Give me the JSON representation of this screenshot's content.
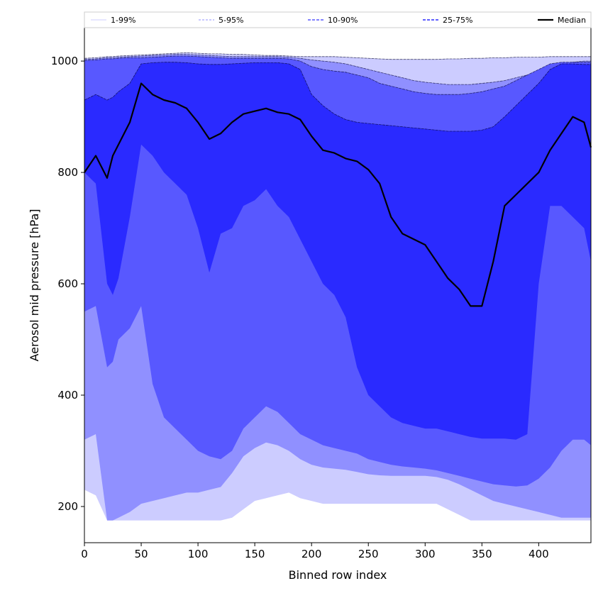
{
  "chart_data": {
    "type": "area",
    "title": "",
    "xlabel": "Binned row index",
    "ylabel": "Aerosol mid pressure [hPa]",
    "xlim": [
      0,
      446
    ],
    "ylim": [
      135,
      1060
    ],
    "xticks": [
      0,
      50,
      100,
      150,
      200,
      250,
      300,
      350,
      400
    ],
    "yticks": [
      200,
      400,
      600,
      800,
      1000
    ],
    "grid": false,
    "legend_position": "top (single row across plot width)",
    "colors": {
      "band_1_99": "#ccccff",
      "band_5_95": "#9090ff",
      "band_10_90": "#5858ff",
      "band_25_75": "#2a2aff",
      "median": "#000000"
    },
    "legend": [
      {
        "label": "1-99%",
        "style": "solid-thin",
        "color": "#ccccff"
      },
      {
        "label": "5-95%",
        "style": "dashed-thin",
        "color": "#9090ff"
      },
      {
        "label": "10-90%",
        "style": "dashed",
        "color": "#5858ff"
      },
      {
        "label": "25-75%",
        "style": "dashed",
        "color": "#2a2aff"
      },
      {
        "label": "Median",
        "style": "solid-thick",
        "color": "#000000"
      }
    ],
    "x": [
      0,
      10,
      20,
      25,
      30,
      40,
      50,
      60,
      70,
      80,
      90,
      100,
      110,
      120,
      130,
      140,
      150,
      160,
      170,
      180,
      190,
      200,
      210,
      220,
      230,
      240,
      250,
      260,
      270,
      280,
      290,
      300,
      310,
      320,
      330,
      340,
      350,
      360,
      370,
      380,
      390,
      400,
      410,
      420,
      430,
      440,
      446
    ],
    "series": [
      {
        "name": "1-99%",
        "lower": [
          230,
          220,
          175,
          175,
          175,
          175,
          175,
          175,
          175,
          175,
          175,
          175,
          175,
          175,
          180,
          195,
          210,
          215,
          220,
          225,
          215,
          210,
          205,
          205,
          205,
          205,
          205,
          205,
          205,
          205,
          205,
          205,
          205,
          195,
          185,
          175,
          175,
          175,
          175,
          175,
          175,
          175,
          175,
          175,
          175,
          175,
          175
        ],
        "upper": [
          1005,
          1006,
          1008,
          1008,
          1009,
          1010,
          1011,
          1012,
          1013,
          1014,
          1015,
          1014,
          1013,
          1013,
          1012,
          1012,
          1011,
          1010,
          1010,
          1009,
          1008,
          1008,
          1008,
          1008,
          1007,
          1006,
          1005,
          1004,
          1003,
          1003,
          1003,
          1003,
          1003,
          1004,
          1004,
          1005,
          1005,
          1006,
          1006,
          1007,
          1007,
          1007,
          1008,
          1008,
          1008,
          1008,
          1008
        ]
      },
      {
        "name": "5-95%",
        "lower": [
          320,
          330,
          175,
          175,
          180,
          190,
          205,
          210,
          215,
          220,
          225,
          225,
          230,
          235,
          260,
          290,
          305,
          315,
          310,
          300,
          285,
          275,
          270,
          268,
          266,
          262,
          258,
          256,
          255,
          255,
          255,
          255,
          253,
          248,
          240,
          230,
          220,
          210,
          205,
          200,
          195,
          190,
          185,
          180,
          180,
          180,
          180
        ],
        "upper": [
          1003,
          1004,
          1006,
          1006,
          1007,
          1008,
          1009,
          1010,
          1011,
          1012,
          1012,
          1011,
          1010,
          1009,
          1008,
          1008,
          1008,
          1008,
          1008,
          1007,
          1005,
          1002,
          1000,
          998,
          995,
          990,
          985,
          980,
          975,
          970,
          965,
          962,
          960,
          958,
          958,
          958,
          960,
          962,
          965,
          970,
          975,
          980,
          990,
          995,
          998,
          1000,
          1000
        ]
      },
      {
        "name": "10-90%",
        "lower": [
          550,
          560,
          450,
          460,
          500,
          520,
          560,
          420,
          360,
          340,
          320,
          300,
          290,
          285,
          300,
          340,
          360,
          380,
          370,
          350,
          330,
          320,
          310,
          305,
          300,
          295,
          285,
          280,
          275,
          272,
          270,
          268,
          265,
          260,
          255,
          250,
          245,
          240,
          238,
          236,
          238,
          250,
          270,
          300,
          320,
          320,
          310
        ],
        "upper": [
          1001,
          1002,
          1004,
          1004,
          1005,
          1006,
          1006,
          1007,
          1008,
          1009,
          1009,
          1008,
          1007,
          1006,
          1005,
          1005,
          1005,
          1005,
          1005,
          1004,
          1000,
          990,
          985,
          982,
          980,
          975,
          970,
          960,
          955,
          950,
          945,
          942,
          940,
          940,
          940,
          942,
          945,
          950,
          955,
          965,
          975,
          985,
          995,
          998,
          998,
          998,
          998
        ]
      },
      {
        "name": "25-75%",
        "lower": [
          800,
          780,
          600,
          580,
          610,
          720,
          850,
          830,
          800,
          780,
          760,
          700,
          620,
          690,
          700,
          740,
          750,
          770,
          740,
          720,
          680,
          640,
          600,
          580,
          540,
          450,
          400,
          380,
          360,
          350,
          345,
          340,
          340,
          335,
          330,
          325,
          322,
          322,
          322,
          320,
          330,
          600,
          740,
          740,
          720,
          700,
          640
        ],
        "upper": [
          930,
          940,
          930,
          935,
          945,
          960,
          995,
          997,
          998,
          998,
          997,
          995,
          994,
          994,
          995,
          996,
          997,
          997,
          997,
          995,
          985,
          940,
          920,
          905,
          895,
          890,
          888,
          886,
          884,
          882,
          880,
          878,
          876,
          874,
          874,
          874,
          876,
          882,
          900,
          920,
          940,
          960,
          985,
          995,
          995,
          994,
          994
        ]
      },
      {
        "name": "Median",
        "values": [
          800,
          830,
          790,
          830,
          850,
          890,
          960,
          940,
          930,
          925,
          915,
          890,
          860,
          870,
          890,
          905,
          910,
          915,
          908,
          905,
          895,
          865,
          840,
          835,
          825,
          820,
          805,
          780,
          720,
          690,
          680,
          670,
          640,
          610,
          590,
          560,
          560,
          640,
          740,
          760,
          780,
          800,
          840,
          870,
          900,
          890,
          845
        ]
      }
    ]
  }
}
